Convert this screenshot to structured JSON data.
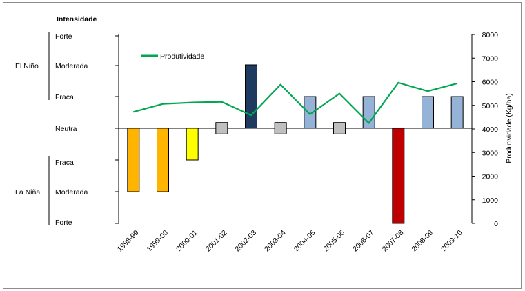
{
  "chart_data": {
    "type": "bar",
    "categories": [
      "1998-99",
      "1999-00",
      "2000-01",
      "2001-02",
      "2002-03",
      "2003-04",
      "2004-05",
      "2005-06",
      "2006-07",
      "2007-08",
      "2008-09",
      "2009-10"
    ],
    "intensity_title": "Intensidade",
    "intensity_levels": [
      "Forte",
      "Moderada",
      "Fraca",
      "Neutra",
      "Fraca",
      "Moderada",
      "Forte"
    ],
    "phase_groups": [
      "El Niño",
      "La Niña"
    ],
    "intensity_series": {
      "values": [
        -2,
        -2,
        -1,
        0.4,
        2,
        0.4,
        1,
        0.4,
        1,
        -3,
        1,
        1
      ],
      "neutral_baseline": [
        false,
        false,
        false,
        true,
        false,
        true,
        false,
        true,
        false,
        false,
        false,
        false
      ],
      "colors": [
        "#FFB400",
        "#FFB400",
        "#FFFF00",
        "#BFBFBF",
        "#1F3A5F",
        "#BFBFBF",
        "#95B3D7",
        "#BFBFBF",
        "#95B3D7",
        "#C00000",
        "#95B3D7",
        "#95B3D7"
      ],
      "range": [
        -3,
        3
      ]
    },
    "line_series": {
      "name": "Produtividade",
      "color": "#00A651",
      "values": [
        4720,
        5060,
        5120,
        5150,
        4580,
        5880,
        4620,
        5500,
        4250,
        5960,
        5600,
        5930
      ]
    },
    "y2label": "Produtividade (Kg/ha)",
    "y2lim": [
      0,
      8000
    ],
    "y2ticks": [
      "0",
      "1000",
      "2000",
      "3000",
      "4000",
      "5000",
      "6000",
      "7000",
      "8000"
    ],
    "legend_position": "top-left"
  }
}
